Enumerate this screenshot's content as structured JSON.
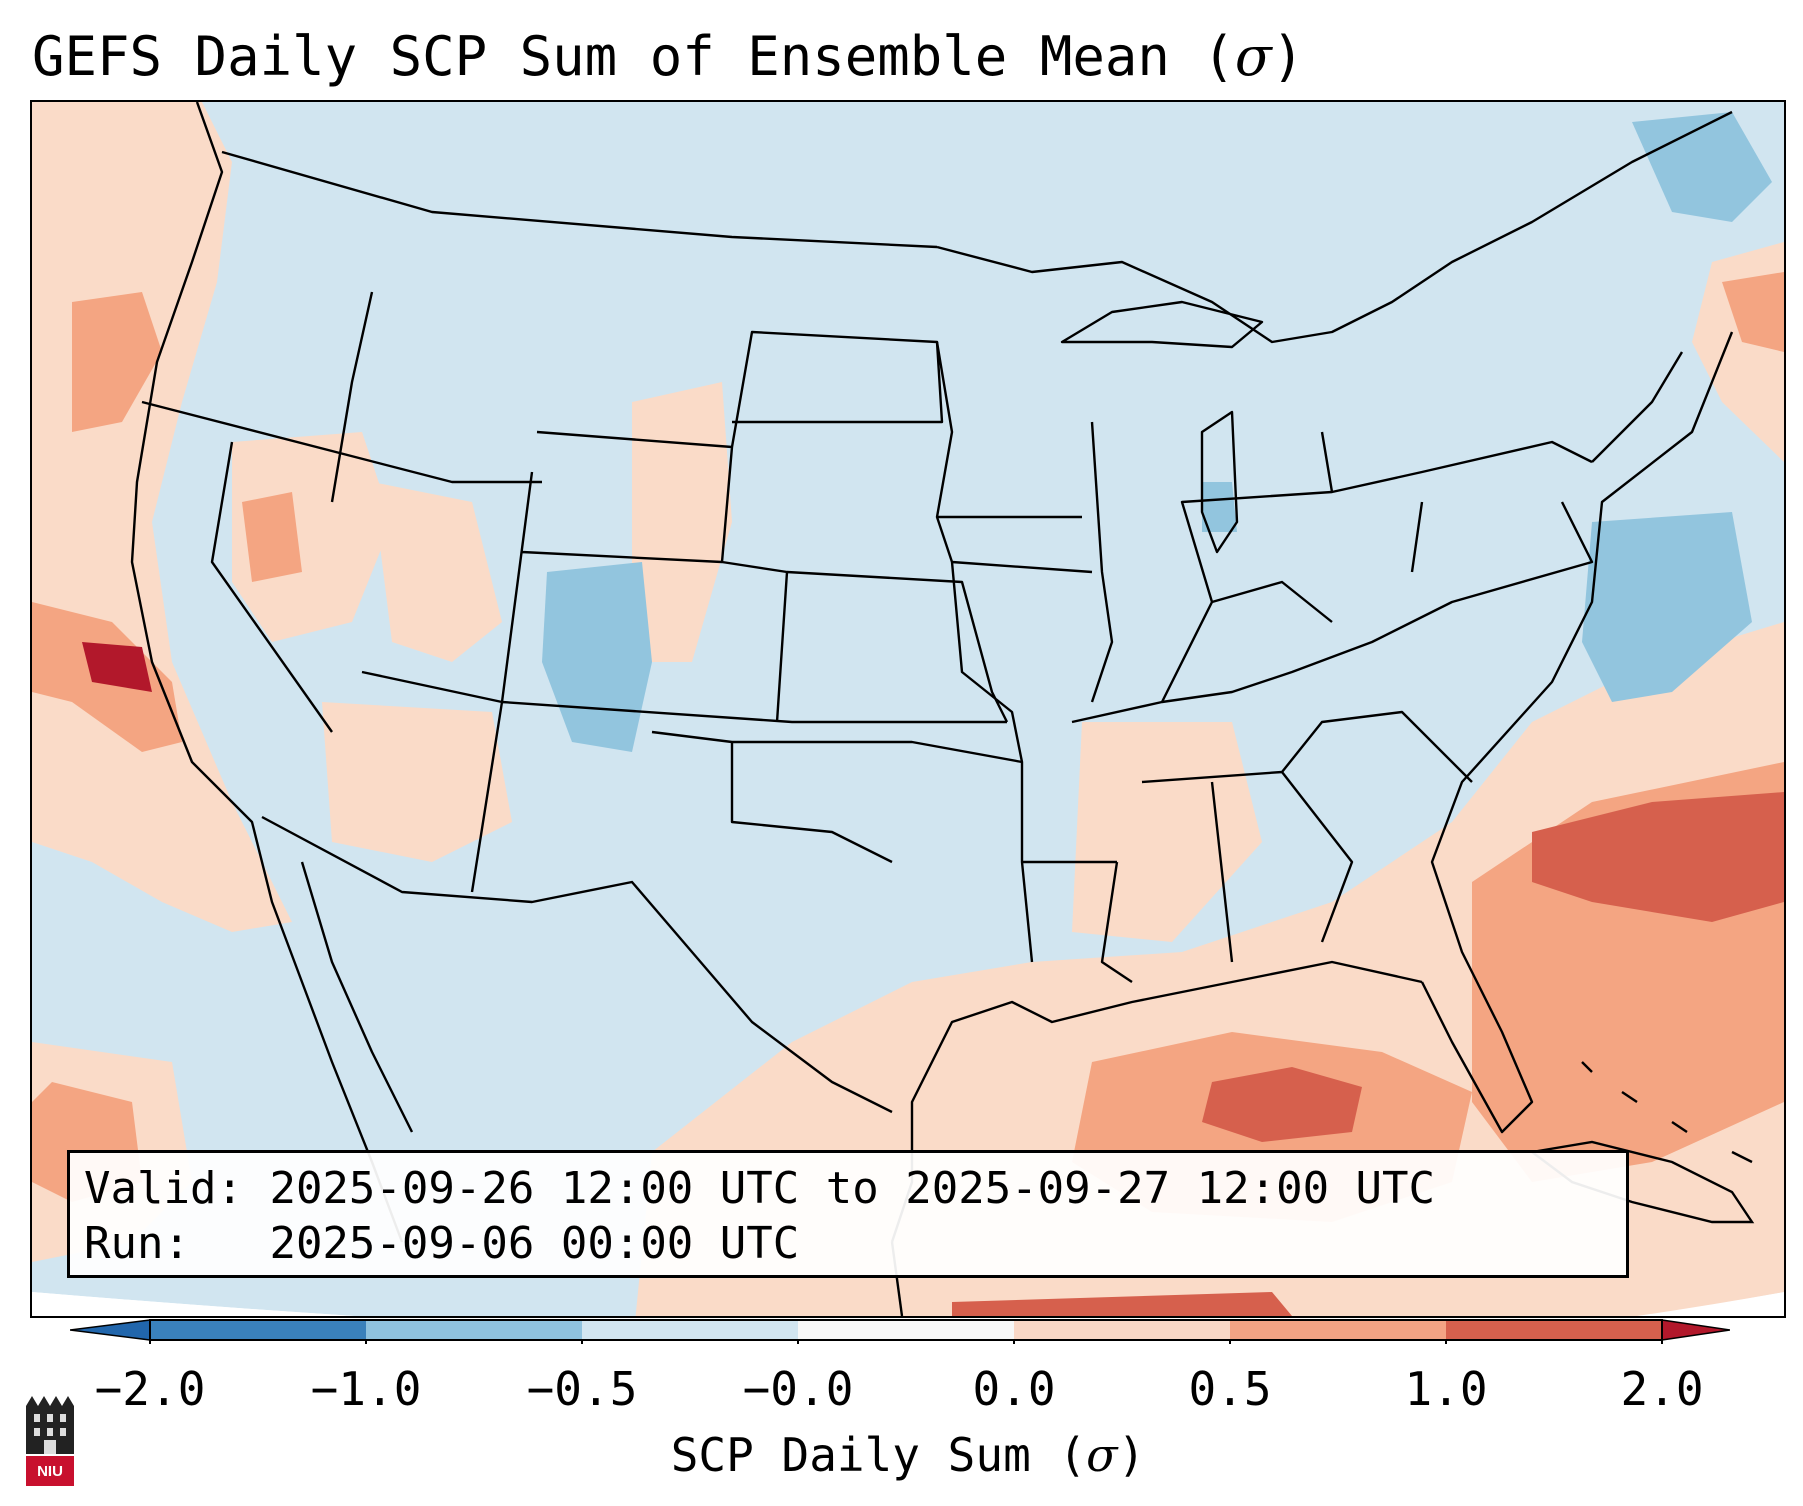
{
  "title": {
    "text": "GEFS Daily SCP Sum of Ensemble Mean (",
    "sigma": "σ",
    "close": ")"
  },
  "info": {
    "valid_label": "Valid:",
    "valid_value": "2025-09-26 12:00 UTC to 2025-09-27 12:00 UTC",
    "run_label": "Run:",
    "run_value": "2025-09-06 00:00 UTC"
  },
  "colorbar": {
    "label_text": "SCP Daily Sum (",
    "label_sigma": "σ",
    "label_close": ")",
    "ticks": [
      "−2.0",
      "−1.0",
      "−0.5",
      "−0.0",
      "0.0",
      "0.5",
      "1.0",
      "2.0"
    ],
    "colors": [
      "#3a81bb",
      "#8fc2de",
      "#d1e5f0",
      "#f7f7f7",
      "#f9d7c6",
      "#f3a384",
      "#d6604d",
      "#b2182b"
    ]
  },
  "logo": {
    "name": "niu-logo",
    "text": "NIU"
  },
  "map": {
    "anomaly_palette": {
      "background_neg": "#d1e5f0",
      "weak_pos": "#fadbc8",
      "moderate_pos": "#f4a582",
      "strong_pos": "#d6604d",
      "extreme_pos": "#b2182b",
      "moderate_neg": "#92c5de",
      "ocean_bg": "#ffffff"
    }
  }
}
